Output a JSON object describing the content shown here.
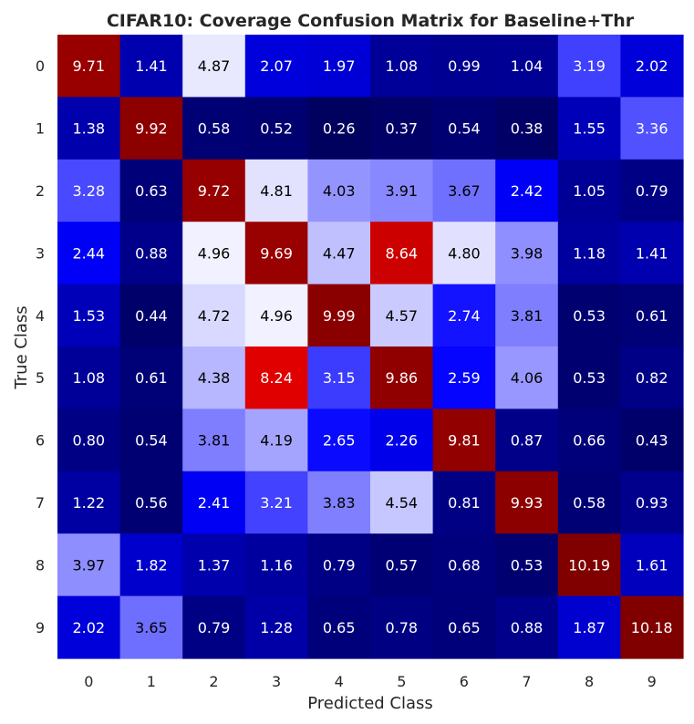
{
  "chart_data": {
    "type": "heatmap",
    "title": "CIFAR10: Coverage Confusion Matrix for Baseline+Thr",
    "xlabel": "Predicted Class",
    "ylabel": "True Class",
    "x_categories": [
      "0",
      "1",
      "2",
      "3",
      "4",
      "5",
      "6",
      "7",
      "8",
      "9"
    ],
    "y_categories": [
      "0",
      "1",
      "2",
      "3",
      "4",
      "5",
      "6",
      "7",
      "8",
      "9"
    ],
    "values": [
      [
        9.71,
        1.41,
        4.87,
        2.07,
        1.97,
        1.08,
        0.99,
        1.04,
        3.19,
        2.02
      ],
      [
        1.38,
        9.92,
        0.58,
        0.52,
        0.26,
        0.37,
        0.54,
        0.38,
        1.55,
        3.36
      ],
      [
        3.28,
        0.63,
        9.72,
        4.81,
        4.03,
        3.91,
        3.67,
        2.42,
        1.05,
        0.79
      ],
      [
        2.44,
        0.88,
        4.96,
        9.69,
        4.47,
        8.64,
        4.8,
        3.98,
        1.18,
        1.41
      ],
      [
        1.53,
        0.44,
        4.72,
        4.96,
        9.99,
        4.57,
        2.74,
        3.81,
        0.53,
        0.61
      ],
      [
        1.08,
        0.61,
        4.38,
        8.24,
        3.15,
        9.86,
        2.59,
        4.06,
        0.53,
        0.82
      ],
      [
        0.8,
        0.54,
        3.81,
        4.19,
        2.65,
        2.26,
        9.81,
        0.87,
        0.66,
        0.43
      ],
      [
        1.22,
        0.56,
        2.41,
        3.21,
        3.83,
        4.54,
        0.81,
        9.93,
        0.58,
        0.93
      ],
      [
        3.97,
        1.82,
        1.37,
        1.16,
        0.79,
        0.57,
        0.68,
        0.53,
        10.19,
        1.61
      ],
      [
        2.02,
        3.65,
        0.79,
        1.28,
        0.65,
        0.78,
        0.65,
        0.88,
        1.87,
        10.18
      ]
    ],
    "colormap": "seismic",
    "value_range": [
      0,
      10.19
    ],
    "grid": false,
    "legend": "none"
  }
}
